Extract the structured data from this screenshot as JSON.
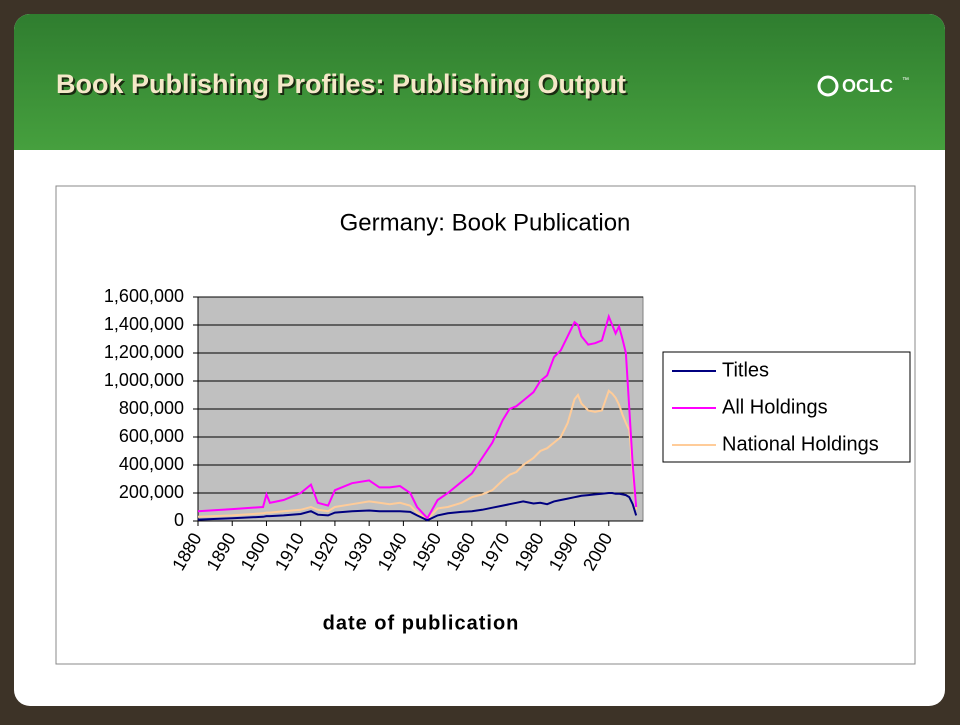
{
  "header": {
    "title": "Book Publishing Profiles: Publishing Output",
    "logo": "OCLC",
    "logo_tm": "™"
  },
  "chart_data": {
    "type": "line",
    "title": "Germany: Book Publication",
    "xlabel": "date of publication",
    "x": [
      1880,
      1890,
      1899,
      1900,
      1901,
      1905,
      1910,
      1913,
      1915,
      1918,
      1920,
      1925,
      1930,
      1933,
      1936,
      1939,
      1942,
      1944,
      1947,
      1950,
      1953,
      1957,
      1960,
      1963,
      1966,
      1969,
      1971,
      1973,
      1975,
      1978,
      1980,
      1982,
      1984,
      1986,
      1988,
      1990,
      1991,
      1992,
      1994,
      1996,
      1998,
      2000,
      2001,
      2002,
      2003,
      2004,
      2005,
      2006,
      2007,
      2008
    ],
    "series": [
      {
        "name": "Titles",
        "color": "#000080",
        "values": [
          10000,
          20000,
          30000,
          35000,
          35000,
          40000,
          50000,
          70000,
          45000,
          40000,
          60000,
          70000,
          75000,
          70000,
          70000,
          70000,
          65000,
          40000,
          5000,
          40000,
          55000,
          65000,
          70000,
          80000,
          95000,
          110000,
          120000,
          130000,
          140000,
          125000,
          130000,
          120000,
          140000,
          150000,
          160000,
          170000,
          175000,
          180000,
          185000,
          190000,
          195000,
          200000,
          200000,
          195000,
          195000,
          190000,
          185000,
          170000,
          120000,
          40000
        ]
      },
      {
        "name": "All Holdings",
        "color": "#ff00ff",
        "values": [
          70000,
          85000,
          100000,
          190000,
          130000,
          150000,
          200000,
          260000,
          130000,
          110000,
          220000,
          270000,
          290000,
          240000,
          240000,
          250000,
          200000,
          100000,
          20000,
          150000,
          200000,
          280000,
          340000,
          450000,
          560000,
          720000,
          800000,
          820000,
          860000,
          920000,
          1000000,
          1040000,
          1170000,
          1220000,
          1320000,
          1420000,
          1400000,
          1320000,
          1260000,
          1270000,
          1290000,
          1460000,
          1400000,
          1340000,
          1390000,
          1300000,
          1200000,
          800000,
          400000,
          100000
        ]
      },
      {
        "name": "National Holdings",
        "color": "#ffcc99",
        "values": [
          30000,
          40000,
          55000,
          60000,
          60000,
          70000,
          80000,
          100000,
          80000,
          70000,
          100000,
          120000,
          140000,
          130000,
          120000,
          130000,
          110000,
          60000,
          10000,
          90000,
          100000,
          130000,
          170000,
          190000,
          220000,
          290000,
          330000,
          350000,
          400000,
          450000,
          500000,
          520000,
          560000,
          600000,
          700000,
          870000,
          900000,
          840000,
          790000,
          780000,
          790000,
          930000,
          910000,
          880000,
          830000,
          760000,
          700000,
          650000,
          350000,
          80000
        ]
      }
    ],
    "xlim": [
      1880,
      2010
    ],
    "xticks": [
      1880,
      1890,
      1900,
      1910,
      1920,
      1930,
      1940,
      1950,
      1960,
      1970,
      1980,
      1990,
      2000
    ],
    "ylim": [
      0,
      1600000
    ],
    "yticks": [
      0,
      {
        "value": 200000,
        "label": "200,000"
      },
      {
        "value": 400000,
        "label": "400,000"
      },
      {
        "value": 600000,
        "label": "600,000"
      },
      {
        "value": 800000,
        "label": "800,000"
      },
      {
        "value": 1000000,
        "label": "1,000,000"
      },
      {
        "value": 1200000,
        "label": "1,200,000"
      },
      {
        "value": 1400000,
        "label": "1,400,000"
      },
      {
        "value": 1600000,
        "label": "1,600,000"
      }
    ],
    "grid": true,
    "legend": "right",
    "plot_color": "#c0c0c0"
  }
}
